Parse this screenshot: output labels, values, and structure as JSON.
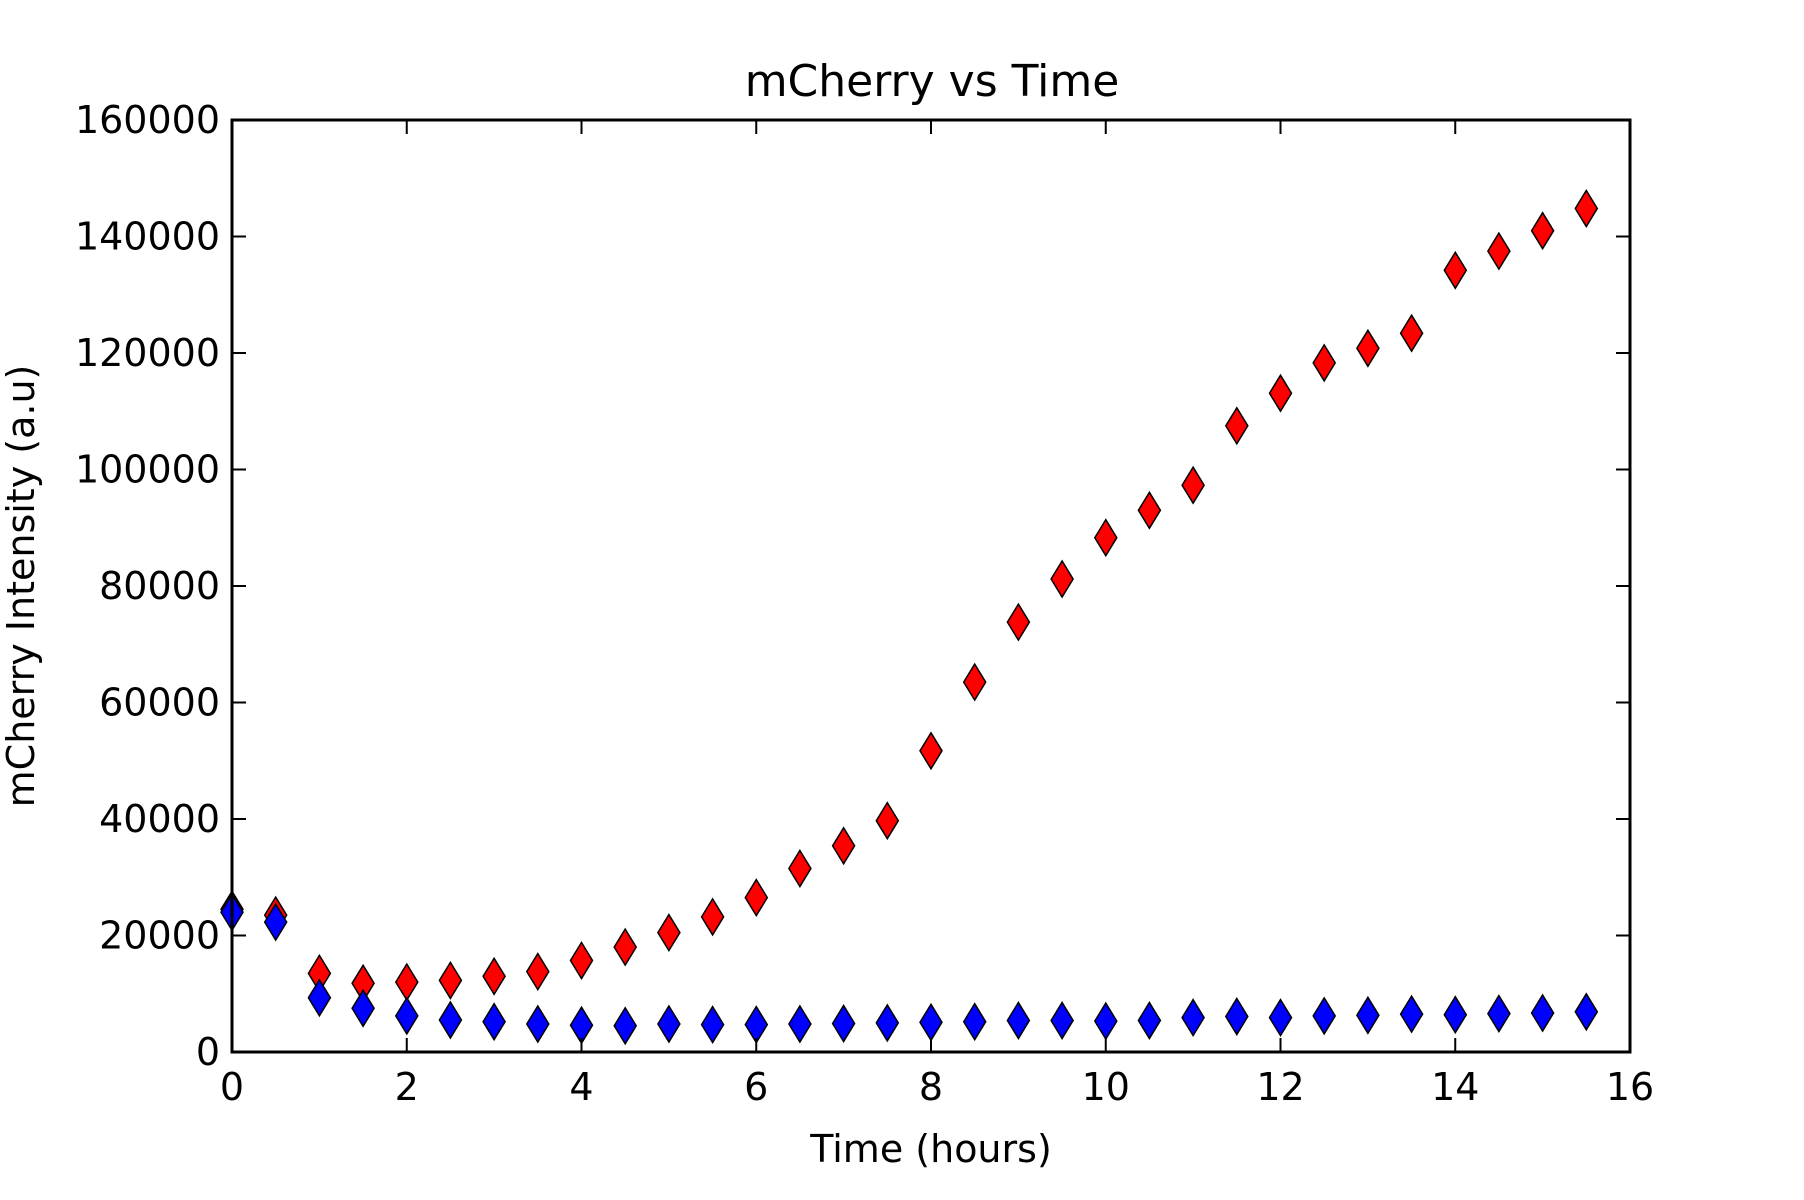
{
  "chart_data": {
    "type": "scatter",
    "title": "mCherry vs Time",
    "xlabel": "Time (hours)",
    "ylabel": "mCherry Intensity (a.u)",
    "xlim": [
      0,
      16
    ],
    "ylim": [
      0,
      160000
    ],
    "xticks": [
      0,
      2,
      4,
      6,
      8,
      10,
      12,
      14,
      16
    ],
    "xtick_labels": [
      "0",
      "2",
      "4",
      "6",
      "8",
      "10",
      "12",
      "14",
      "16"
    ],
    "yticks": [
      0,
      20000,
      40000,
      60000,
      80000,
      100000,
      120000,
      140000,
      160000
    ],
    "ytick_labels": [
      "0",
      "20000",
      "40000",
      "60000",
      "80000",
      "100000",
      "120000",
      "140000",
      "160000"
    ],
    "grid": false,
    "legend": "none",
    "marker": "diamond",
    "x": [
      0,
      0.5,
      1,
      1.5,
      2,
      2.5,
      3,
      3.5,
      4,
      4.5,
      5,
      5.5,
      6,
      6.5,
      7,
      7.5,
      8,
      8.5,
      9,
      9.5,
      10,
      10.5,
      11,
      11.5,
      12,
      12.5,
      13,
      13.5,
      14,
      14.5,
      15,
      15.5
    ],
    "series": [
      {
        "name": "red",
        "color": "#ff0000",
        "values": [
          24500,
          23500,
          13500,
          11800,
          12000,
          12300,
          13000,
          13800,
          15700,
          18000,
          20500,
          23200,
          26500,
          31500,
          35400,
          39700,
          51700,
          63500,
          73800,
          81200,
          88300,
          93000,
          97300,
          107500,
          113100,
          118300,
          120800,
          123400,
          134200,
          137500,
          141000,
          144800
        ]
      },
      {
        "name": "blue",
        "color": "#0000ff",
        "values": [
          24000,
          22300,
          9300,
          7500,
          6200,
          5500,
          5200,
          4800,
          4600,
          4500,
          4800,
          4700,
          4700,
          4800,
          4900,
          5000,
          5100,
          5200,
          5400,
          5400,
          5300,
          5400,
          5900,
          6100,
          5900,
          6200,
          6300,
          6500,
          6400,
          6600,
          6700,
          6900
        ]
      }
    ]
  }
}
